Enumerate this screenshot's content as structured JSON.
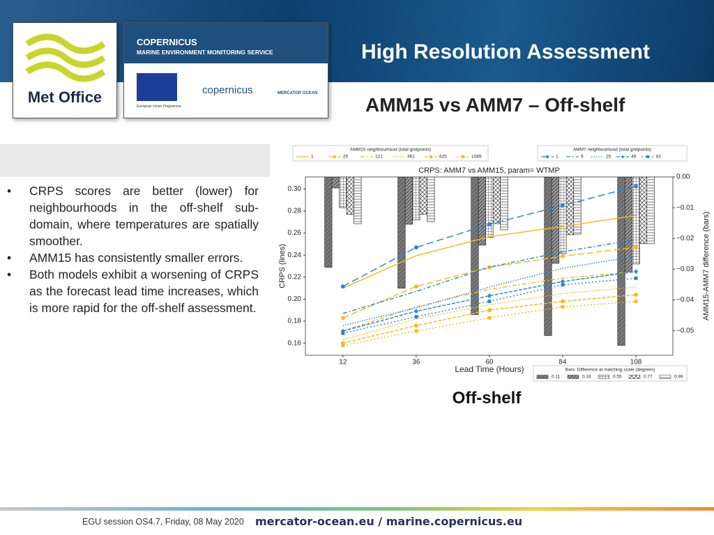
{
  "header": {
    "title": "High Resolution Assessment",
    "subtitle": "AMM15 vs AMM7 – Off-shelf"
  },
  "logos": {
    "metoffice": "Met Office",
    "copernicus": "COPERNICUS",
    "cmems": "MARINE ENVIRONMENT MONITORING SERVICE",
    "eu": "European Union Programme",
    "copernicus_small": "copernicus",
    "mercator": "MERCATOR OCEAN"
  },
  "bullets": [
    "CRPS scores are better (lower) for neighbourhoods in the off-shelf sub-domain, where temperatures are spatially smoother.",
    "AMM15 has consistently smaller errors.",
    "Both models exhibit a worsening of CRPS as the forecast lead time increases, which is more rapid for the off-shelf assessment."
  ],
  "caption": "Off-shelf",
  "footer": {
    "session": "EGU session OS4.7, Friday, 08 May 2020",
    "links": "mercator-ocean.eu / marine.copernicus.eu"
  },
  "chart_data": {
    "type": "line",
    "title": "CRPS: AMM7 vs AMM15, param= WTMP",
    "xlabel": "Lead Time (Hours)",
    "ylabel": "CRPS (lines)",
    "y2label": "AMM15-AMM7 difference (bars)",
    "legend_titles": [
      "AMM15 neighbourhood (total gridpoints)",
      "AMM7 neighbourhood (total gridpoints)",
      "Bars: Difference at matching scale (degrees)"
    ],
    "x": [
      12,
      36,
      60,
      84,
      108
    ],
    "xlim": [
      -0.3,
      120.1
    ],
    "xticks": [
      12,
      36,
      60,
      84,
      108
    ],
    "ylim": [
      0.149,
      0.311
    ],
    "yticks": [
      0.16,
      0.18,
      {
        "value": 0.2,
        "label": "0.20"
      },
      0.22,
      0.24,
      0.26,
      0.28,
      {
        "value": 0.3,
        "label": "0.30"
      }
    ],
    "y2lim": [
      -0.058,
      0
    ],
    "y2ticks": [
      {
        "value": 0,
        "label": "0.00"
      },
      {
        "value": -0.01,
        "label": "−0.01"
      },
      {
        "value": -0.02,
        "label": "−0.02"
      },
      {
        "value": -0.03,
        "label": "−0.03"
      },
      {
        "value": -0.04,
        "label": "−0.04"
      },
      {
        "value": -0.05,
        "label": "−0.05"
      }
    ],
    "series": [
      {
        "name": "1",
        "legend": 0,
        "color": "#f2bd1d",
        "dash": "none",
        "marker": "none",
        "values": [
          0.21,
          0.2395,
          0.2567,
          0.266,
          0.276
        ]
      },
      {
        "name": "25",
        "legend": 0,
        "color": "#f2bd1d",
        "dash": "9,4",
        "marker": "circle",
        "values": [
          0.183,
          0.2115,
          0.229,
          0.239,
          0.247
        ]
      },
      {
        "name": "121",
        "legend": 0,
        "color": "#f2bd1d",
        "dash": "6,3,2,3",
        "marker": "none",
        "values": [
          0.171,
          0.193,
          0.209,
          0.219,
          0.225
        ]
      },
      {
        "name": "361",
        "legend": 0,
        "color": "#f2bd1d",
        "dash": "1.5,2",
        "marker": "none",
        "values": [
          0.163,
          0.182,
          0.195,
          0.205,
          0.211
        ]
      },
      {
        "name": "625",
        "legend": 0,
        "color": "#f2bd1d",
        "dash": "5,2",
        "marker": "circle",
        "values": [
          0.16,
          0.176,
          0.19,
          0.198,
          0.204
        ]
      },
      {
        "name": "1089",
        "legend": 0,
        "color": "#f2bd1d",
        "dash": "2,3",
        "marker": "square",
        "values": [
          0.158,
          0.171,
          0.183,
          0.193,
          0.198
        ]
      },
      {
        "name": "1",
        "legend": 1,
        "color": "#2f86d3",
        "dash": "10,5",
        "marker": "circle",
        "values": [
          0.2115,
          0.247,
          0.268,
          0.285,
          0.3025
        ]
      },
      {
        "name": "9",
        "legend": 1,
        "color": "#2f86d3",
        "dash": "6,3,2,3",
        "marker": "none",
        "values": [
          0.187,
          0.207,
          0.229,
          0.243,
          0.254
        ]
      },
      {
        "name": "25",
        "legend": 1,
        "color": "#2f86d3",
        "dash": "1.5,2",
        "marker": "none",
        "values": [
          0.176,
          0.192,
          0.211,
          0.228,
          0.239
        ]
      },
      {
        "name": "49",
        "legend": 1,
        "color": "#2f86d3",
        "dash": "5,2",
        "marker": "diamond",
        "values": [
          0.171,
          0.189,
          0.203,
          0.216,
          0.225
        ]
      },
      {
        "name": "81",
        "legend": 1,
        "color": "#2f86d3",
        "dash": "2,3",
        "marker": "square",
        "values": [
          0.169,
          0.184,
          0.198,
          0.213,
          0.219
        ]
      },
      {
        "name": "0.11",
        "legend": 2,
        "type": "bar",
        "axis": "y2",
        "color": "#7a7a7a",
        "hatch": "hatch-slant",
        "values": [
          -0.0294,
          -0.0362,
          -0.0448,
          -0.0516,
          -0.0548
        ]
      },
      {
        "name": "0.33",
        "legend": 2,
        "type": "bar",
        "axis": "y2",
        "color": "#9a9a9a",
        "hatch": "hatch-diag",
        "values": [
          -0.0036,
          -0.0154,
          -0.0222,
          -0.0281,
          -0.0308
        ]
      },
      {
        "name": "0.55",
        "legend": 2,
        "type": "bar",
        "axis": "y2",
        "color": "#ffffff",
        "hatch": "hatch-grid",
        "values": [
          -0.01,
          -0.014,
          -0.0197,
          -0.0249,
          -0.0283
        ]
      },
      {
        "name": "0.77",
        "legend": 2,
        "type": "bar",
        "axis": "y2",
        "color": "#ffffff",
        "hatch": "hatch-cross",
        "values": [
          -0.0122,
          -0.0122,
          -0.0152,
          -0.0188,
          -0.0217
        ]
      },
      {
        "name": "0.99",
        "legend": 2,
        "type": "bar",
        "axis": "y2",
        "color": "#ffffff",
        "hatch": "hatch-horiz",
        "values": [
          -0.0152,
          -0.0145,
          -0.0172,
          -0.0186,
          -0.0217
        ]
      }
    ]
  }
}
